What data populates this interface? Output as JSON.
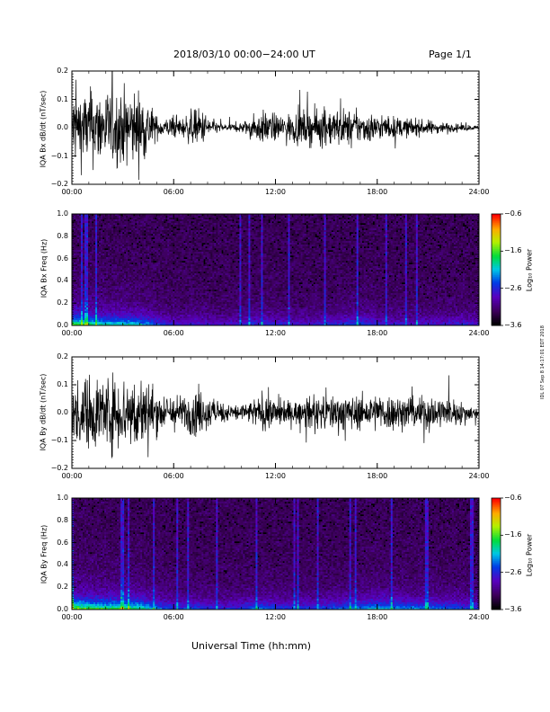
{
  "header": {
    "title": "2018/03/10  00:00−24:00 UT",
    "page": "Page 1/1"
  },
  "side_label": "IDL 07 Sep 8 14:17:01 EDT 2018",
  "x_axis_title": "Universal Time (hh:mm)",
  "chart_data": [
    {
      "type": "line",
      "title": "",
      "ylabel": "IQA Bx dB/dt (nT/sec)",
      "xlabel": "",
      "x_ticks": [
        "00:00",
        "06:00",
        "12:00",
        "18:00",
        "24:00"
      ],
      "y_ticks": [
        "0.2",
        "0.1",
        "0.0",
        "−0.1",
        "−0.2"
      ],
      "xlim": [
        0,
        24
      ],
      "ylim": [
        -0.2,
        0.2
      ],
      "envelope": {
        "hours": [
          0,
          0.5,
          1,
          1.5,
          2,
          2.5,
          3,
          3.5,
          4,
          4.5,
          5,
          5.5,
          6,
          6.5,
          7,
          7.5,
          8,
          8.5,
          9,
          9.5,
          10,
          10.5,
          11,
          11.5,
          12,
          12.5,
          13,
          13.5,
          14,
          14.5,
          15,
          15.5,
          16,
          16.5,
          17,
          17.5,
          18,
          18.5,
          19,
          19.5,
          20,
          20.5,
          21,
          21.5,
          22,
          22.5,
          23,
          23.5,
          24
        ],
        "amplitude": [
          0.2,
          0.2,
          0.2,
          0.2,
          0.2,
          0.2,
          0.2,
          0.2,
          0.2,
          0.15,
          0.06,
          0.05,
          0.06,
          0.05,
          0.09,
          0.1,
          0.07,
          0.03,
          0.02,
          0.02,
          0.03,
          0.05,
          0.08,
          0.09,
          0.07,
          0.07,
          0.08,
          0.09,
          0.09,
          0.1,
          0.1,
          0.1,
          0.1,
          0.09,
          0.08,
          0.08,
          0.07,
          0.06,
          0.06,
          0.05,
          0.05,
          0.04,
          0.04,
          0.03,
          0.03,
          0.02,
          0.02,
          0.015,
          0.01
        ]
      }
    },
    {
      "type": "heatmap",
      "title": "",
      "ylabel": "IQA Bx Freq (Hz)",
      "xlabel": "",
      "x_ticks": [
        "00:00",
        "06:00",
        "12:00",
        "18:00",
        "24:00"
      ],
      "y_ticks": [
        "1.0",
        "0.8",
        "0.6",
        "0.4",
        "0.2",
        "0.0"
      ],
      "xlim": [
        0,
        24
      ],
      "ylim": [
        0,
        1
      ],
      "colorbar": {
        "label": "Log₁₀ Power",
        "ticks": [
          "−0.6",
          "−1.6",
          "−2.6",
          "−3.6"
        ],
        "range": [
          -3.6,
          -0.6
        ]
      },
      "activity": {
        "hours": [
          0,
          1,
          2,
          3,
          4,
          5,
          6,
          7,
          8,
          9,
          10,
          11,
          12,
          13,
          14,
          15,
          16,
          17,
          18,
          19,
          20,
          21,
          22,
          23,
          24
        ],
        "level": [
          0.9,
          0.8,
          0.7,
          0.7,
          0.65,
          0.45,
          0.3,
          0.35,
          0.3,
          0.25,
          0.3,
          0.4,
          0.35,
          0.3,
          0.3,
          0.35,
          0.4,
          0.45,
          0.35,
          0.3,
          0.3,
          0.3,
          0.3,
          0.35,
          0.3
        ]
      }
    },
    {
      "type": "line",
      "title": "",
      "ylabel": "IQA By dB/dt (nT/sec)",
      "xlabel": "",
      "x_ticks": [
        "00:00",
        "06:00",
        "12:00",
        "18:00",
        "24:00"
      ],
      "y_ticks": [
        "0.2",
        "0.1",
        "0.0",
        "−0.1",
        "−0.2"
      ],
      "xlim": [
        0,
        24
      ],
      "ylim": [
        -0.2,
        0.2
      ],
      "envelope": {
        "hours": [
          0,
          0.5,
          1,
          1.5,
          2,
          2.5,
          3,
          3.5,
          4,
          4.5,
          5,
          5.5,
          6,
          6.5,
          7,
          7.5,
          8,
          8.5,
          9,
          9.5,
          10,
          10.5,
          11,
          11.5,
          12,
          12.5,
          13,
          13.5,
          14,
          14.5,
          15,
          15.5,
          16,
          16.5,
          17,
          17.5,
          18,
          18.5,
          19,
          19.5,
          20,
          20.5,
          21,
          21.5,
          22,
          22.5,
          23,
          23.5,
          24
        ],
        "amplitude": [
          0.12,
          0.2,
          0.2,
          0.2,
          0.2,
          0.2,
          0.2,
          0.2,
          0.2,
          0.18,
          0.12,
          0.09,
          0.1,
          0.09,
          0.12,
          0.12,
          0.1,
          0.06,
          0.05,
          0.05,
          0.05,
          0.06,
          0.09,
          0.1,
          0.08,
          0.07,
          0.06,
          0.07,
          0.08,
          0.09,
          0.1,
          0.1,
          0.1,
          0.09,
          0.09,
          0.09,
          0.1,
          0.1,
          0.1,
          0.09,
          0.08,
          0.09,
          0.1,
          0.09,
          0.08,
          0.07,
          0.06,
          0.04,
          0.03
        ]
      }
    },
    {
      "type": "heatmap",
      "title": "",
      "ylabel": "IQA By Freq (Hz)",
      "xlabel": "",
      "x_ticks": [
        "00:00",
        "06:00",
        "12:00",
        "18:00",
        "24:00"
      ],
      "y_ticks": [
        "1.0",
        "0.8",
        "0.6",
        "0.4",
        "0.2",
        "0.0"
      ],
      "xlim": [
        0,
        24
      ],
      "ylim": [
        0,
        1
      ],
      "colorbar": {
        "label": "Log₁₀ Power",
        "ticks": [
          "−0.6",
          "−1.6",
          "−2.6",
          "−3.6"
        ],
        "range": [
          -3.6,
          -0.6
        ]
      },
      "activity": {
        "hours": [
          0,
          1,
          2,
          3,
          4,
          5,
          6,
          7,
          8,
          9,
          10,
          11,
          12,
          13,
          14,
          15,
          16,
          17,
          18,
          19,
          20,
          21,
          22,
          23,
          24
        ],
        "level": [
          1.0,
          0.9,
          0.85,
          0.85,
          0.8,
          0.55,
          0.4,
          0.45,
          0.4,
          0.35,
          0.4,
          0.5,
          0.45,
          0.4,
          0.4,
          0.45,
          0.5,
          0.55,
          0.65,
          0.6,
          0.55,
          0.55,
          0.5,
          0.45,
          0.4
        ]
      }
    }
  ]
}
